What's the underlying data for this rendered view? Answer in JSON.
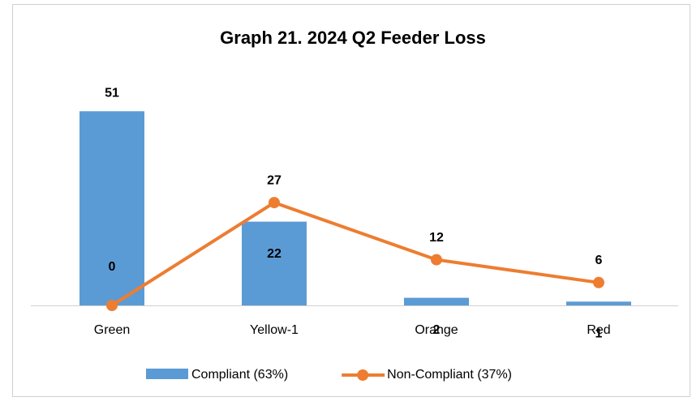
{
  "chart_data": {
    "type": "bar",
    "title": "Graph 21. 2024 Q2 Feeder Loss",
    "categories": [
      "Green",
      "Yellow-1",
      "Orange",
      "Red"
    ],
    "series": [
      {
        "name": "Compliant (63%)",
        "type": "bar",
        "color": "#5b9bd5",
        "values": [
          51,
          22,
          2,
          1
        ]
      },
      {
        "name": "Non-Compliant (37%)",
        "type": "line",
        "color": "#ed7d31",
        "values": [
          0,
          27,
          12,
          6
        ]
      }
    ],
    "ylim": [
      0,
      60
    ],
    "legend": "bottom"
  }
}
